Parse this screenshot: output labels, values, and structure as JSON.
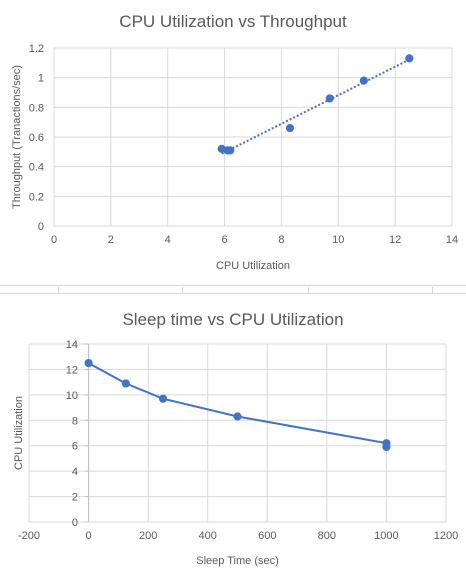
{
  "chart_data": [
    {
      "type": "scatter",
      "title": "CPU Utilization vs Throughput",
      "xlabel": "CPU Utilization",
      "ylabel": "Throughput (Tranactions/sec)",
      "xlim": [
        0,
        14
      ],
      "ylim": [
        0,
        1.2
      ],
      "xticks": [
        "0",
        "2",
        "4",
        "6",
        "8",
        "10",
        "12",
        "14"
      ],
      "yticks": [
        "0",
        "0.2",
        "0.4",
        "0.6",
        "0.8",
        "1",
        "1.2"
      ],
      "grid": true,
      "trendline": "linear-dotted",
      "points": [
        {
          "x": 5.9,
          "y": 0.52
        },
        {
          "x": 6.1,
          "y": 0.51
        },
        {
          "x": 6.2,
          "y": 0.51
        },
        {
          "x": 8.3,
          "y": 0.66
        },
        {
          "x": 9.7,
          "y": 0.86
        },
        {
          "x": 10.9,
          "y": 0.98
        },
        {
          "x": 12.5,
          "y": 1.13
        }
      ],
      "color": "#4472c4"
    },
    {
      "type": "line",
      "title": "Sleep time vs CPU Utilization",
      "xlabel": "Sleep Time (sec)",
      "ylabel": "CPU Utilization",
      "xlim": [
        -200,
        1200
      ],
      "ylim": [
        0,
        14
      ],
      "xticks": [
        "-200",
        "0",
        "200",
        "400",
        "600",
        "800",
        "1000",
        "1200"
      ],
      "yticks": [
        "0",
        "2",
        "4",
        "6",
        "8",
        "10",
        "12",
        "14"
      ],
      "grid": true,
      "points": [
        {
          "x": 0,
          "y": 12.5
        },
        {
          "x": 125,
          "y": 10.9
        },
        {
          "x": 250,
          "y": 9.7
        },
        {
          "x": 500,
          "y": 8.3
        },
        {
          "x": 1000,
          "y": 6.2
        },
        {
          "x": 1000,
          "y": 5.9
        }
      ],
      "color": "#4472c4"
    }
  ]
}
